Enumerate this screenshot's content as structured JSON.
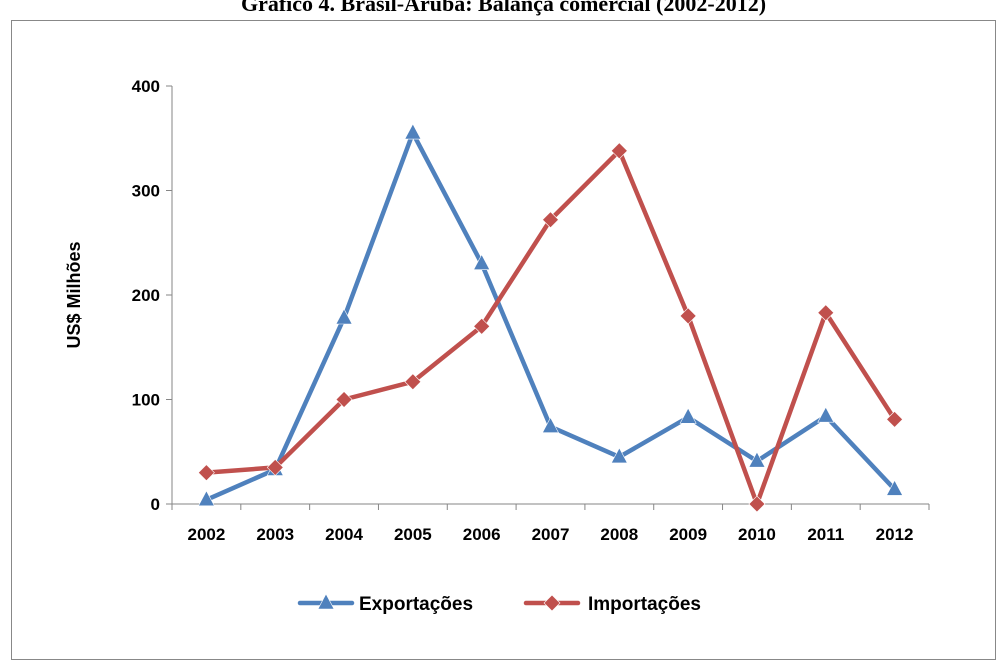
{
  "page": {
    "title": "Gráfico 4. Brasil-Aruba: Balança comercial (2002-2012)"
  },
  "chart_data": {
    "type": "line",
    "title": "",
    "xlabel": "",
    "ylabel": "US$ Milhões",
    "ylim": [
      0,
      400
    ],
    "yticks": [
      0,
      100,
      200,
      300,
      400
    ],
    "categories": [
      "2002",
      "2003",
      "2004",
      "2005",
      "2006",
      "2007",
      "2008",
      "2009",
      "2010",
      "2011",
      "2012"
    ],
    "grid": false,
    "legend_position": "bottom",
    "series": [
      {
        "name": "Exportações",
        "color": "#4F81BD",
        "marker": "triangle",
        "values": [
          4,
          33,
          178,
          355,
          230,
          74,
          45,
          83,
          41,
          84,
          14
        ]
      },
      {
        "name": "Importações",
        "color": "#C0504D",
        "marker": "diamond",
        "values": [
          30,
          35,
          100,
          117,
          170,
          272,
          338,
          180,
          0,
          183,
          81
        ]
      }
    ]
  }
}
